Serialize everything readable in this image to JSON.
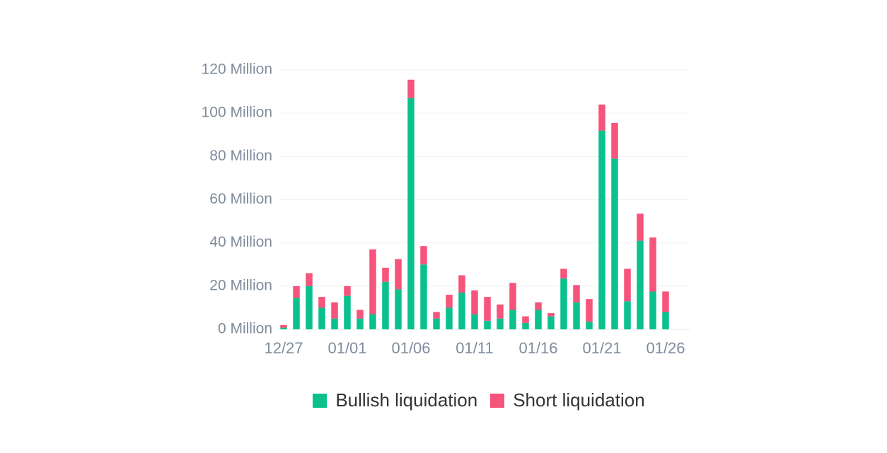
{
  "chart_data": {
    "type": "bar",
    "stacked": true,
    "x_tick_labels": [
      "12/27",
      "01/01",
      "01/06",
      "01/11",
      "01/16",
      "01/21",
      "01/26"
    ],
    "categories": [
      "12/27",
      "12/28",
      "12/29",
      "12/30",
      "12/31",
      "01/01",
      "01/02",
      "01/03",
      "01/04",
      "01/05",
      "01/06",
      "01/07",
      "01/08",
      "01/09",
      "01/10",
      "01/11",
      "01/12",
      "01/13",
      "01/14",
      "01/15",
      "01/16",
      "01/17",
      "01/18",
      "01/19",
      "01/20",
      "01/21",
      "01/22",
      "01/23",
      "01/24",
      "01/25",
      "01/26"
    ],
    "series": [
      {
        "name": "Bullish liquidation",
        "color": "#0ac18e",
        "values": [
          0.8,
          14.5,
          20,
          10,
          5,
          15.5,
          5,
          7,
          22,
          18.5,
          107,
          30,
          5,
          10,
          17,
          7,
          4,
          5,
          9,
          3,
          9,
          6,
          23.5,
          12.5,
          3.5,
          92,
          79,
          13,
          41,
          17.5,
          8
        ]
      },
      {
        "name": "Short liquidation",
        "color": "#f6547a",
        "values": [
          1.2,
          5.5,
          6,
          5,
          7.5,
          4.5,
          4,
          30,
          6.5,
          14,
          8.5,
          8.5,
          3,
          6,
          8,
          11,
          11,
          6.5,
          12.5,
          3,
          3.5,
          1.5,
          4.5,
          8,
          10.5,
          12,
          16.5,
          15,
          12.5,
          25,
          9.5
        ]
      }
    ],
    "y_ticks": [
      {
        "value": 0,
        "label": "0 Million"
      },
      {
        "value": 20,
        "label": "20 Million"
      },
      {
        "value": 40,
        "label": "40 Million"
      },
      {
        "value": 60,
        "label": "60 Million"
      },
      {
        "value": 80,
        "label": "80 Million"
      },
      {
        "value": 100,
        "label": "100 Million"
      },
      {
        "value": 120,
        "label": "120 Million"
      }
    ],
    "ylim": [
      0,
      120
    ],
    "grid": true,
    "legend_position": "bottom"
  }
}
